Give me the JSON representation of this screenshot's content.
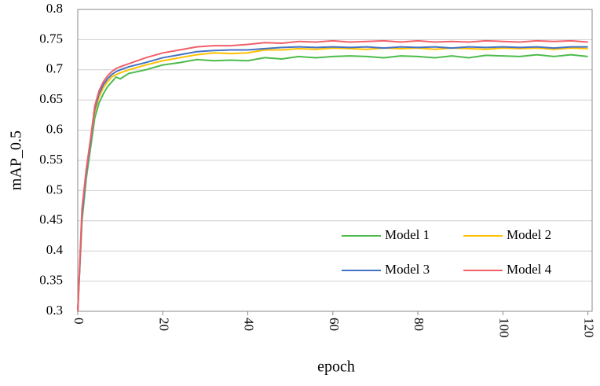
{
  "chart_data": {
    "type": "line",
    "xlabel": "epoch",
    "ylabel": "mAP_0.5",
    "x": [
      0,
      1,
      2,
      3,
      4,
      5,
      6,
      7,
      8,
      9,
      10,
      12,
      16,
      20,
      24,
      28,
      32,
      36,
      40,
      44,
      48,
      52,
      56,
      60,
      64,
      68,
      72,
      76,
      80,
      84,
      88,
      92,
      96,
      100,
      104,
      108,
      112,
      116,
      120
    ],
    "series": [
      {
        "name": "Model 1",
        "color": "#4cbb4c",
        "values": [
          0.3,
          0.45,
          0.52,
          0.57,
          0.62,
          0.645,
          0.66,
          0.672,
          0.68,
          0.688,
          0.685,
          0.694,
          0.7,
          0.708,
          0.712,
          0.717,
          0.715,
          0.716,
          0.715,
          0.72,
          0.718,
          0.722,
          0.72,
          0.722,
          0.723,
          0.722,
          0.72,
          0.723,
          0.722,
          0.72,
          0.723,
          0.72,
          0.724,
          0.723,
          0.722,
          0.725,
          0.722,
          0.725,
          0.722
        ]
      },
      {
        "name": "Model 2",
        "color": "#ffc000",
        "values": [
          0.3,
          0.46,
          0.53,
          0.58,
          0.63,
          0.655,
          0.67,
          0.68,
          0.688,
          0.692,
          0.695,
          0.7,
          0.708,
          0.715,
          0.72,
          0.725,
          0.728,
          0.727,
          0.728,
          0.733,
          0.733,
          0.735,
          0.734,
          0.736,
          0.735,
          0.734,
          0.736,
          0.735,
          0.736,
          0.734,
          0.736,
          0.735,
          0.734,
          0.736,
          0.735,
          0.736,
          0.734,
          0.736,
          0.735
        ]
      },
      {
        "name": "Model 3",
        "color": "#4472c4",
        "values": [
          0.3,
          0.46,
          0.53,
          0.58,
          0.635,
          0.66,
          0.675,
          0.685,
          0.692,
          0.697,
          0.7,
          0.705,
          0.712,
          0.72,
          0.725,
          0.73,
          0.732,
          0.733,
          0.733,
          0.735,
          0.737,
          0.738,
          0.737,
          0.738,
          0.737,
          0.738,
          0.736,
          0.738,
          0.737,
          0.738,
          0.736,
          0.738,
          0.737,
          0.738,
          0.737,
          0.738,
          0.736,
          0.738,
          0.738
        ]
      },
      {
        "name": "Model 4",
        "color": "#f0606a",
        "values": [
          0.3,
          0.47,
          0.535,
          0.585,
          0.64,
          0.665,
          0.68,
          0.69,
          0.697,
          0.702,
          0.705,
          0.71,
          0.72,
          0.728,
          0.733,
          0.738,
          0.74,
          0.74,
          0.742,
          0.745,
          0.744,
          0.747,
          0.746,
          0.748,
          0.746,
          0.747,
          0.748,
          0.746,
          0.748,
          0.746,
          0.747,
          0.746,
          0.748,
          0.747,
          0.746,
          0.748,
          0.747,
          0.748,
          0.746
        ]
      }
    ],
    "xlim": [
      0,
      121
    ],
    "xticks": [
      0,
      20,
      40,
      60,
      80,
      100,
      120
    ],
    "ylim": [
      0.3,
      0.8
    ],
    "yticks": [
      0.3,
      0.35,
      0.4,
      0.45,
      0.5,
      0.55,
      0.6,
      0.65,
      0.7,
      0.75,
      0.8
    ],
    "grid": true,
    "legend": "lower right"
  }
}
